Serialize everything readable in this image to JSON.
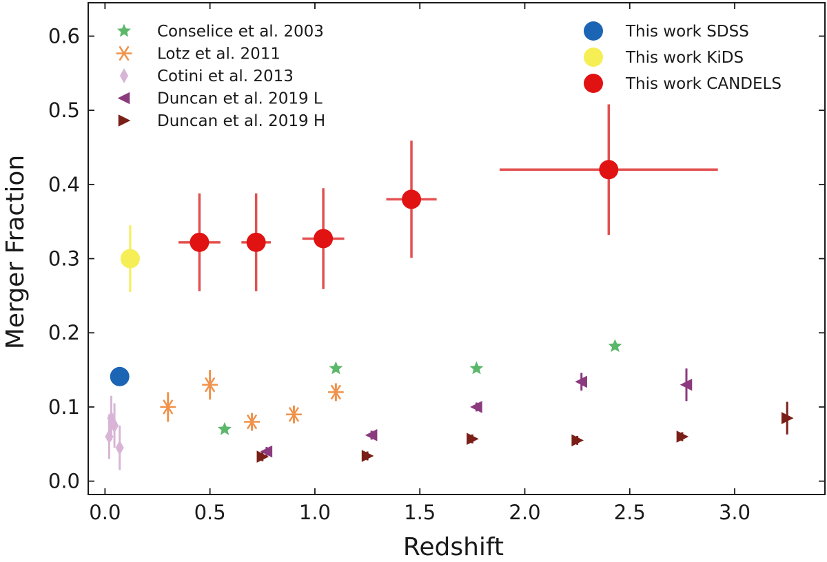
{
  "chart_data": {
    "type": "scatter",
    "xlabel": "Redshift",
    "ylabel": "Merger Fraction",
    "xlim": [
      -0.08,
      3.43
    ],
    "ylim": [
      -0.018,
      0.645
    ],
    "xticks": [
      0.0,
      0.5,
      1.0,
      1.5,
      2.0,
      2.5,
      3.0
    ],
    "yticks": [
      0.0,
      0.1,
      0.2,
      0.3,
      0.4,
      0.5,
      0.6
    ],
    "xtick_labels": [
      "0.0",
      "0.5",
      "1.0",
      "1.5",
      "2.0",
      "2.5",
      "3.0"
    ],
    "ytick_labels": [
      "0.0",
      "0.1",
      "0.2",
      "0.3",
      "0.4",
      "0.5",
      "0.6"
    ],
    "grid": false,
    "legend_left": [
      "Conselice et al. 2003",
      "Lotz et al. 2011",
      "Cotini et al. 2013",
      "Duncan et al. 2019 L",
      "Duncan et al. 2019 H"
    ],
    "legend_right": [
      "This work SDSS",
      "This work KiDS",
      "This work CANDELS"
    ],
    "series": [
      {
        "name": "Conselice et al. 2003",
        "marker": "star",
        "color": "#5bb86a",
        "points": [
          {
            "x": 0.57,
            "y": 0.07
          },
          {
            "x": 1.1,
            "y": 0.152
          },
          {
            "x": 1.77,
            "y": 0.152
          },
          {
            "x": 2.43,
            "y": 0.182
          }
        ]
      },
      {
        "name": "Lotz et al. 2011",
        "marker": "asterisk",
        "color": "#f0924a",
        "points": [
          {
            "x": 0.3,
            "y": 0.1,
            "yerr": 0.02
          },
          {
            "x": 0.5,
            "y": 0.13,
            "yerr": 0.02
          },
          {
            "x": 0.7,
            "y": 0.08,
            "yerr": 0.012
          },
          {
            "x": 0.9,
            "y": 0.09,
            "yerr": 0.012
          },
          {
            "x": 1.1,
            "y": 0.12,
            "yerr": 0.012
          }
        ]
      },
      {
        "name": "Cotini et al. 2013",
        "marker": "thin_diamond",
        "color": "#d8b5d6",
        "points": [
          {
            "x": 0.02,
            "y": 0.06,
            "yerr": 0.03
          },
          {
            "x": 0.03,
            "y": 0.085,
            "yerr": 0.03
          },
          {
            "x": 0.045,
            "y": 0.075,
            "yerr": 0.03
          },
          {
            "x": 0.07,
            "y": 0.045,
            "yerr": 0.03
          }
        ]
      },
      {
        "name": "Duncan et al. 2019 L",
        "marker": "triangle_left",
        "color": "#8b3a7e",
        "points": [
          {
            "x": 0.77,
            "y": 0.04,
            "yerr": 0.006
          },
          {
            "x": 1.27,
            "y": 0.062,
            "yerr": 0.006
          },
          {
            "x": 1.77,
            "y": 0.1,
            "yerr": 0.006
          },
          {
            "x": 2.27,
            "y": 0.134,
            "yerr": 0.012
          },
          {
            "x": 2.77,
            "y": 0.13,
            "yerr": 0.022
          }
        ]
      },
      {
        "name": "Duncan et al. 2019 H",
        "marker": "triangle_right",
        "color": "#7a1f18",
        "points": [
          {
            "x": 0.75,
            "y": 0.033,
            "yerr": 0.006
          },
          {
            "x": 1.25,
            "y": 0.034,
            "yerr": 0.006
          },
          {
            "x": 1.75,
            "y": 0.057,
            "yerr": 0.006
          },
          {
            "x": 2.25,
            "y": 0.055,
            "yerr": 0.006
          },
          {
            "x": 2.75,
            "y": 0.06,
            "yerr": 0.006
          },
          {
            "x": 3.25,
            "y": 0.085,
            "yerr": 0.022
          }
        ]
      },
      {
        "name": "This work SDSS",
        "marker": "circle",
        "color": "#1c64b4",
        "points": [
          {
            "x": 0.07,
            "y": 0.141
          }
        ]
      },
      {
        "name": "This work KiDS",
        "marker": "circle",
        "color": "#f6ee55",
        "points": [
          {
            "x": 0.12,
            "y": 0.3,
            "yerr": 0.045
          }
        ]
      },
      {
        "name": "This work CANDELS",
        "marker": "circle",
        "color": "#e01212",
        "errcolor": "#e35050",
        "points": [
          {
            "x": 0.45,
            "y": 0.322,
            "xerr": 0.1,
            "yerr": 0.066
          },
          {
            "x": 0.72,
            "y": 0.322,
            "xerr": 0.07,
            "yerr": 0.066
          },
          {
            "x": 1.04,
            "y": 0.327,
            "xerr": 0.1,
            "yerr": 0.068
          },
          {
            "x": 1.46,
            "y": 0.38,
            "xerr": 0.12,
            "yerr": 0.079
          },
          {
            "x": 2.4,
            "y": 0.42,
            "xerr": 0.52,
            "yerr": 0.088
          }
        ]
      }
    ]
  }
}
